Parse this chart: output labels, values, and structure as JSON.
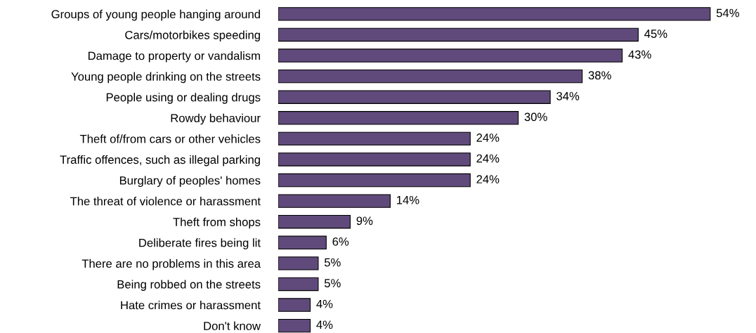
{
  "chart_data": {
    "type": "bar",
    "orientation": "horizontal",
    "categories": [
      "Groups of young people hanging around",
      "Cars/motorbikes speeding",
      "Damage to property or vandalism",
      "Young people drinking on the streets",
      "People using or dealing drugs",
      "Rowdy behaviour",
      "Theft of/from cars or other vehicles",
      "Traffic offences, such as illegal parking",
      "Burglary of peoples' homes",
      "The threat of violence or harassment",
      "Theft from shops",
      "Deliberate fires being lit",
      "There are no problems in this area",
      "Being robbed on the streets",
      "Hate crimes or harassment",
      "Don't know"
    ],
    "values": [
      54,
      45,
      43,
      38,
      34,
      30,
      24,
      24,
      24,
      14,
      9,
      6,
      5,
      5,
      4,
      4
    ],
    "value_labels": [
      "54%",
      "45%",
      "43%",
      "38%",
      "34%",
      "30%",
      "24%",
      "24%",
      "24%",
      "14%",
      "9%",
      "6%",
      "5%",
      "5%",
      "4%",
      "4%"
    ],
    "color": "#604a7b",
    "grid": false,
    "legend": false,
    "tick_labels": "y"
  }
}
